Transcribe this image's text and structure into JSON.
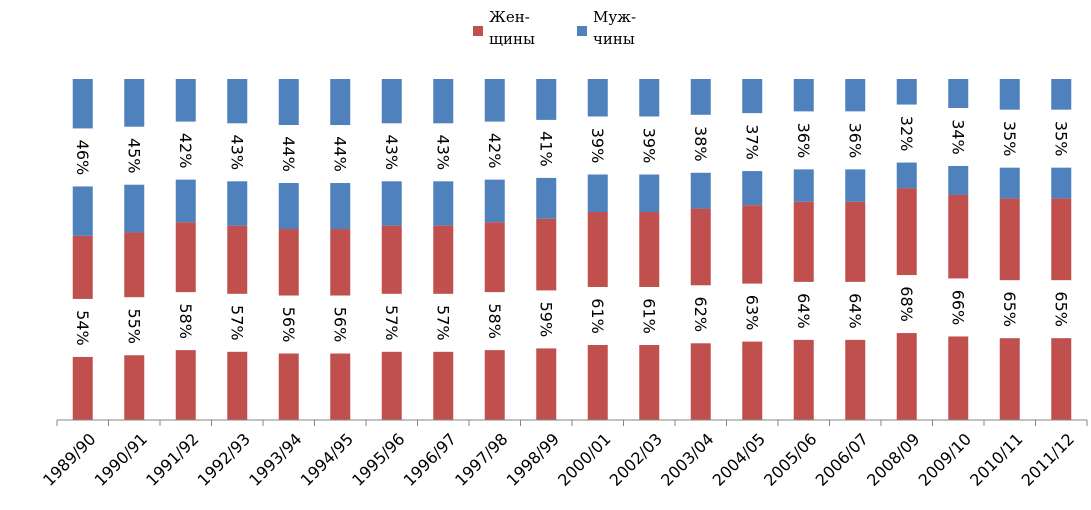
{
  "chart_data": {
    "type": "bar",
    "stacked": true,
    "percent_stacked": true,
    "title": "",
    "xlabel": "",
    "ylabel": "",
    "ylim": [
      0,
      100
    ],
    "grid": false,
    "legend_position": "top",
    "categories": [
      "1989/90",
      "1990/91",
      "1991/92",
      "1992/93",
      "1993/94",
      "1994/95",
      "1995/96",
      "1996/97",
      "1997/98",
      "1998/99",
      "2000/01",
      "2002/03",
      "2003/04",
      "2004/05",
      "2005/06",
      "2006/07",
      "2008/09",
      "2009/10",
      "2010/11",
      "2011/12"
    ],
    "series": [
      {
        "name": "Жен-\nщины",
        "legend_lines": [
          "Жен-",
          "щины"
        ],
        "color": "#C0504D",
        "values": [
          54,
          55,
          58,
          57,
          56,
          56,
          57,
          57,
          58,
          59,
          61,
          61,
          62,
          63,
          64,
          64,
          68,
          66,
          65,
          65
        ],
        "labels": [
          "54%",
          "55%",
          "58%",
          "57%",
          "56%",
          "56%",
          "57%",
          "57%",
          "58%",
          "59%",
          "61%",
          "61%",
          "62%",
          "63%",
          "64%",
          "64%",
          "68%",
          "66%",
          "65%",
          "65%"
        ]
      },
      {
        "name": "Муж-\nчины",
        "legend_lines": [
          "Муж-",
          "чины"
        ],
        "color": "#4F81BD",
        "values": [
          46,
          45,
          42,
          43,
          44,
          44,
          43,
          43,
          42,
          41,
          39,
          39,
          38,
          37,
          36,
          36,
          32,
          34,
          35,
          35
        ],
        "labels": [
          "46%",
          "45%",
          "42%",
          "43%",
          "44%",
          "44%",
          "43%",
          "43%",
          "42%",
          "41%",
          "39%",
          "39%",
          "38%",
          "37%",
          "36%",
          "36%",
          "32%",
          "34%",
          "35%",
          "35%"
        ]
      }
    ]
  }
}
